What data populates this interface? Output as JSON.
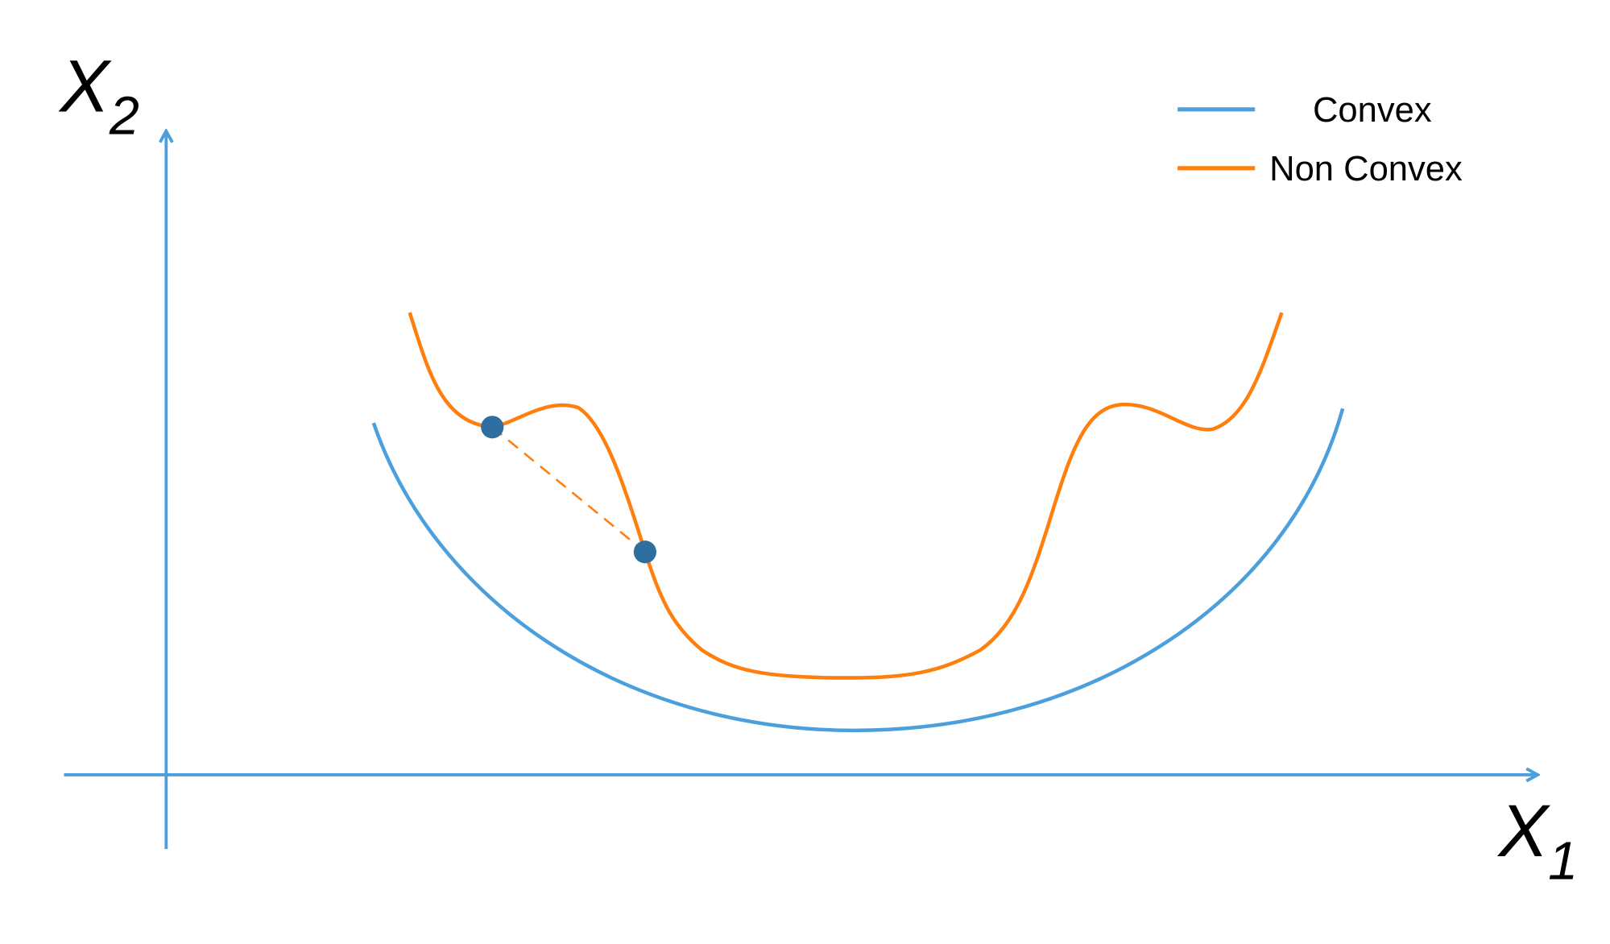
{
  "axes": {
    "x_label": "X",
    "x_sub": "1",
    "y_label": "X",
    "y_sub": "2",
    "color": "#4a9fdc"
  },
  "legend": {
    "items": [
      {
        "label": "Convex",
        "color": "#4a9fdc"
      },
      {
        "label": "Non Convex",
        "color": "#ff7f0e"
      }
    ]
  },
  "points": {
    "color": "#2e6fa0"
  }
}
